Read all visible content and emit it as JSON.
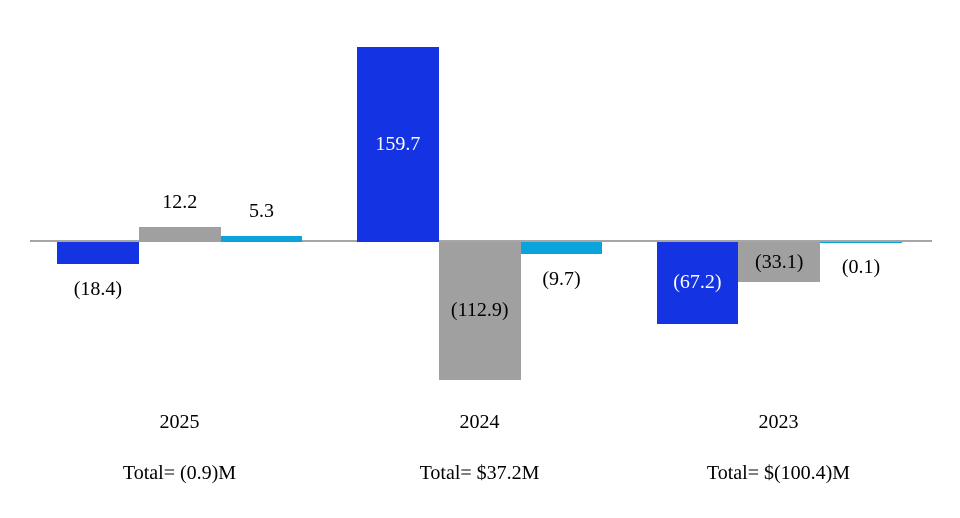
{
  "chart_data": {
    "type": "bar",
    "title": "",
    "categories": [
      "2025",
      "2024",
      "2023"
    ],
    "group_totals": [
      "Total= (0.9)M",
      "Total= $37.2M",
      "Total= $(100.4)M"
    ],
    "axis": {
      "zero_line_color": "#A6A6A6",
      "gridlines": false,
      "legend": "none"
    },
    "series": [
      {
        "name": "blue",
        "color": "#1433E3",
        "inside_label_color": "#FFFFFF",
        "values": [
          -18.4,
          159.7,
          -67.2
        ],
        "data_labels": [
          "(18.4)",
          "159.7",
          "(67.2)"
        ],
        "label_placements": [
          "below",
          "inside",
          "inside"
        ]
      },
      {
        "name": "gray",
        "color": "#A0A0A0",
        "inside_label_color": "#000000",
        "values": [
          12.2,
          -112.9,
          -33.1
        ],
        "data_labels": [
          "12.2",
          "(112.9)",
          "(33.1)"
        ],
        "label_placements": [
          "above",
          "inside",
          "inside"
        ]
      },
      {
        "name": "cyan",
        "color": "#0AA3DC",
        "inside_label_color": "#000000",
        "values": [
          5.3,
          -9.7,
          -0.1
        ],
        "data_labels": [
          "5.3",
          "(9.7)",
          "(0.1)"
        ],
        "label_placements": [
          "above",
          "below",
          "below"
        ]
      }
    ]
  }
}
